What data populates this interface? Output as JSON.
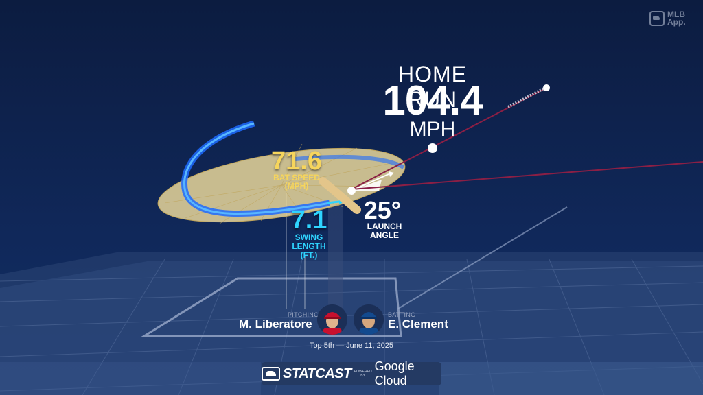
{
  "branding": {
    "logo_line1": "MLB",
    "logo_line2": "App."
  },
  "result": {
    "title": "HOME RUN",
    "exit_velocity": "104.4",
    "unit": "MPH"
  },
  "bat_speed": {
    "value": "71.6",
    "label_line1": "BAT SPEED",
    "label_line2": "(MPH)"
  },
  "swing_length": {
    "value": "7.1",
    "label_line1": "SWING",
    "label_line2": "LENGTH",
    "label_line3": "(FT.)"
  },
  "launch_angle": {
    "value": "25°",
    "label_line1": "LAUNCH",
    "label_line2": "ANGLE"
  },
  "pitcher": {
    "role": "PITCHING",
    "name": "M. Liberatore"
  },
  "batter": {
    "role": "BATTING",
    "name": "E. Clement"
  },
  "game": {
    "date_line": "Top 5th — June 11, 2025"
  },
  "footer": {
    "statcast": "STATCAST",
    "powered_by": "POWERED BY",
    "partner": "Google Cloud"
  },
  "colors": {
    "bat_speed": "#f6d55c",
    "swing_length": "#2fd4ff",
    "ball_path": "#8b1f45",
    "background": "#0d1f45"
  }
}
